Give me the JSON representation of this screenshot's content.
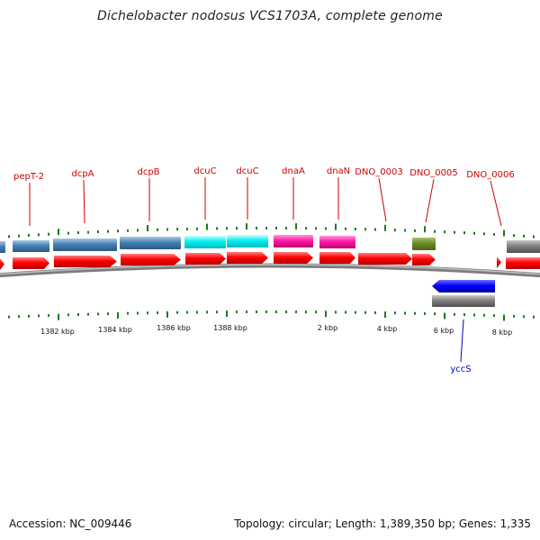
{
  "title": "Dichelobacter nodosus VCS1703A, complete genome",
  "accession": "Accession: NC_009446",
  "summary": "Topology: circular; Length: 1,389,350 bp; Genes: 1,335",
  "colors": {
    "cds_red": "#ff0000",
    "steel_blue": "#4682b4",
    "cyan": "#00ffff",
    "magenta": "#ff1aa8",
    "olive": "#6b8e23",
    "gray": "#7f7f7f",
    "blue": "#0000ff",
    "tick_green": "#1e7a1e",
    "label_red": "#cc0000",
    "label_blue": "#0000cc",
    "backbone": "#808080"
  },
  "gene_labels": [
    {
      "name": "pepT-2",
      "color": "red"
    },
    {
      "name": "dcpA",
      "color": "red"
    },
    {
      "name": "dcpB",
      "color": "red"
    },
    {
      "name": "dcuC",
      "color": "red"
    },
    {
      "name": "dcuC",
      "color": "red"
    },
    {
      "name": "dnaA",
      "color": "red"
    },
    {
      "name": "dnaN",
      "color": "red"
    },
    {
      "name": "DNO_0003",
      "color": "red"
    },
    {
      "name": "DNO_0005",
      "color": "red"
    },
    {
      "name": "DNO_0006",
      "color": "red"
    },
    {
      "name": "yccS",
      "color": "blue"
    }
  ],
  "tick_labels": [
    "1382 kbp",
    "1384 kbp",
    "1386 kbp",
    "1388 kbp",
    "2 kbp",
    "4 kbp",
    "6 kbp",
    "8 kbp"
  ]
}
